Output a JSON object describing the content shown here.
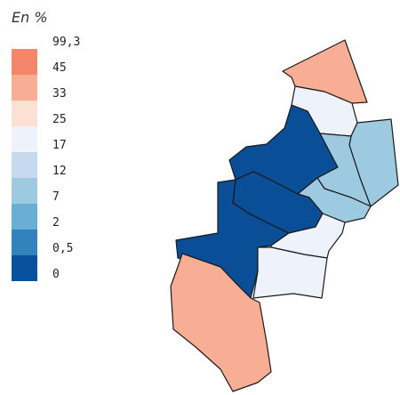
{
  "legend": {
    "title": "En %",
    "classes": [
      {
        "label": "99,3",
        "color": "#f4876a"
      },
      {
        "label": "45",
        "color": "#f8ae94"
      },
      {
        "label": "33",
        "color": "#fce0d4"
      },
      {
        "label": "25",
        "color": "#eef3fb"
      },
      {
        "label": "17",
        "color": "#c7d9ef"
      },
      {
        "label": "12",
        "color": "#9ecae1"
      },
      {
        "label": "7",
        "color": "#6aaed6"
      },
      {
        "label": "2",
        "color": "#3182bd"
      },
      {
        "label": "0,5",
        "color": "#08519c"
      },
      {
        "label": "0",
        "color": ""
      }
    ]
  },
  "map": {
    "districts": [
      {
        "id": "north-tip",
        "color": "#f8ae94"
      },
      {
        "id": "north-upper",
        "color": "#eef3fb"
      },
      {
        "id": "north-east",
        "color": "#9ecae1"
      },
      {
        "id": "central-upper",
        "color": "#0a4e98"
      },
      {
        "id": "east-mid-upper",
        "color": "#9ecae1"
      },
      {
        "id": "east-mid-lower",
        "color": "#9ecae1"
      },
      {
        "id": "central-mid",
        "color": "#0a4e98"
      },
      {
        "id": "west-lower",
        "color": "#0a4e98"
      },
      {
        "id": "east-lower",
        "color": "#eef3fb"
      },
      {
        "id": "south-east",
        "color": "#eef3fb"
      },
      {
        "id": "south",
        "color": "#f8ae94"
      }
    ]
  }
}
